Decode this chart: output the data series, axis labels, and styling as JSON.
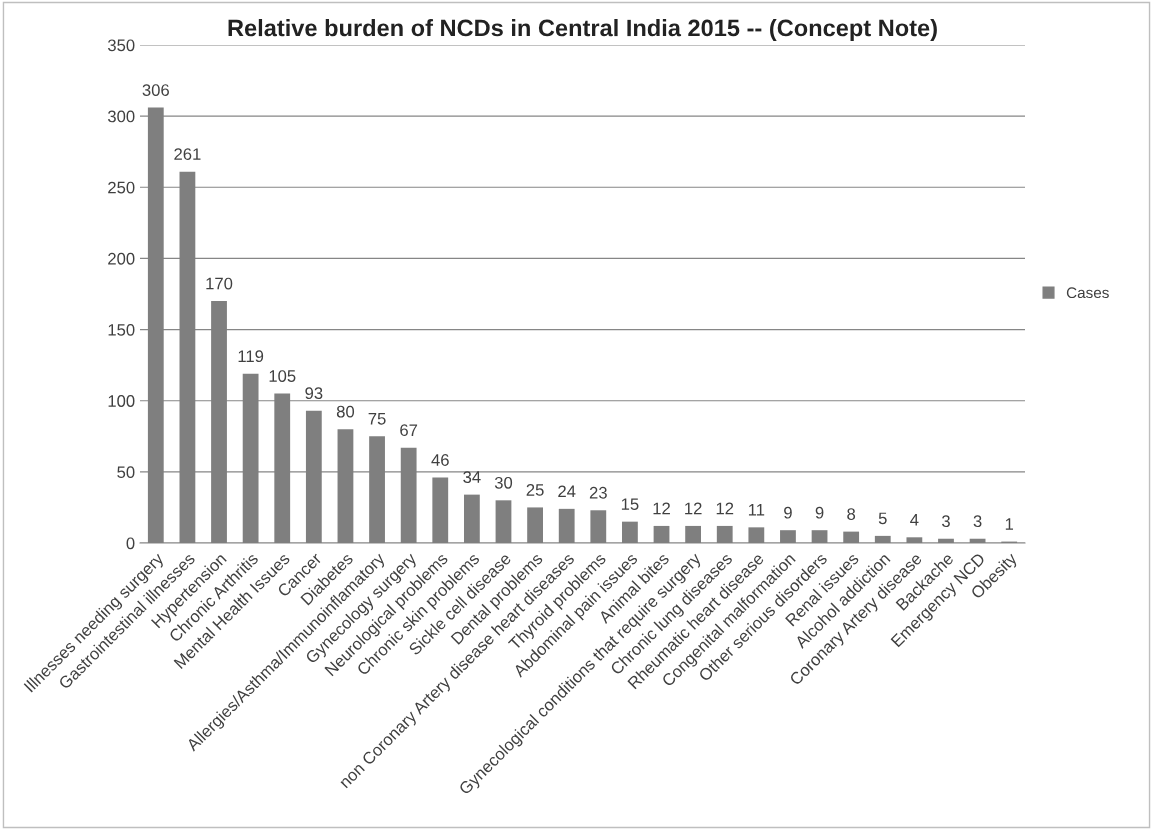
{
  "chart_data": {
    "type": "bar",
    "title": "Relative burden of NCDs in Central India 2015 -- (Concept Note)",
    "categories": [
      "Illnesses needing surgery",
      "Gastrointestinal illnesses",
      "Hypertension",
      "Chronic Arthritis",
      "Mental Health Issues",
      "Cancer",
      "Diabetes",
      "Allergies/Asthma/Immunoinflamatory",
      "Gynecology surgery",
      "Neurological problems",
      "Chronic skin problems",
      "Sickle cell disease",
      "Dental problems",
      "non Coronary Artery disease heart diseases",
      "Thyroid problems",
      "Abdominal pain issues",
      "Animal bites",
      "Gynecological conditions that require surgery",
      "Chronic lung diseases",
      "Rheumatic heart disease",
      "Congenital malformation",
      "Other serious disorders",
      "Renal issues",
      "Alcohol addiction",
      "Coronary Artery disease",
      "Backache",
      "Emergency NCD",
      "Obesity"
    ],
    "series": [
      {
        "name": "Cases",
        "color": "#7f7f7f",
        "values": [
          306,
          261,
          170,
          119,
          105,
          93,
          80,
          75,
          67,
          46,
          34,
          30,
          25,
          24,
          23,
          15,
          12,
          12,
          12,
          11,
          9,
          9,
          8,
          5,
          4,
          3,
          3,
          1
        ]
      }
    ],
    "ylim": [
      0,
      350
    ],
    "yticks": [
      0,
      50,
      100,
      150,
      200,
      250,
      300,
      350
    ],
    "grid": "y",
    "legend": "right",
    "data_labels": true
  }
}
